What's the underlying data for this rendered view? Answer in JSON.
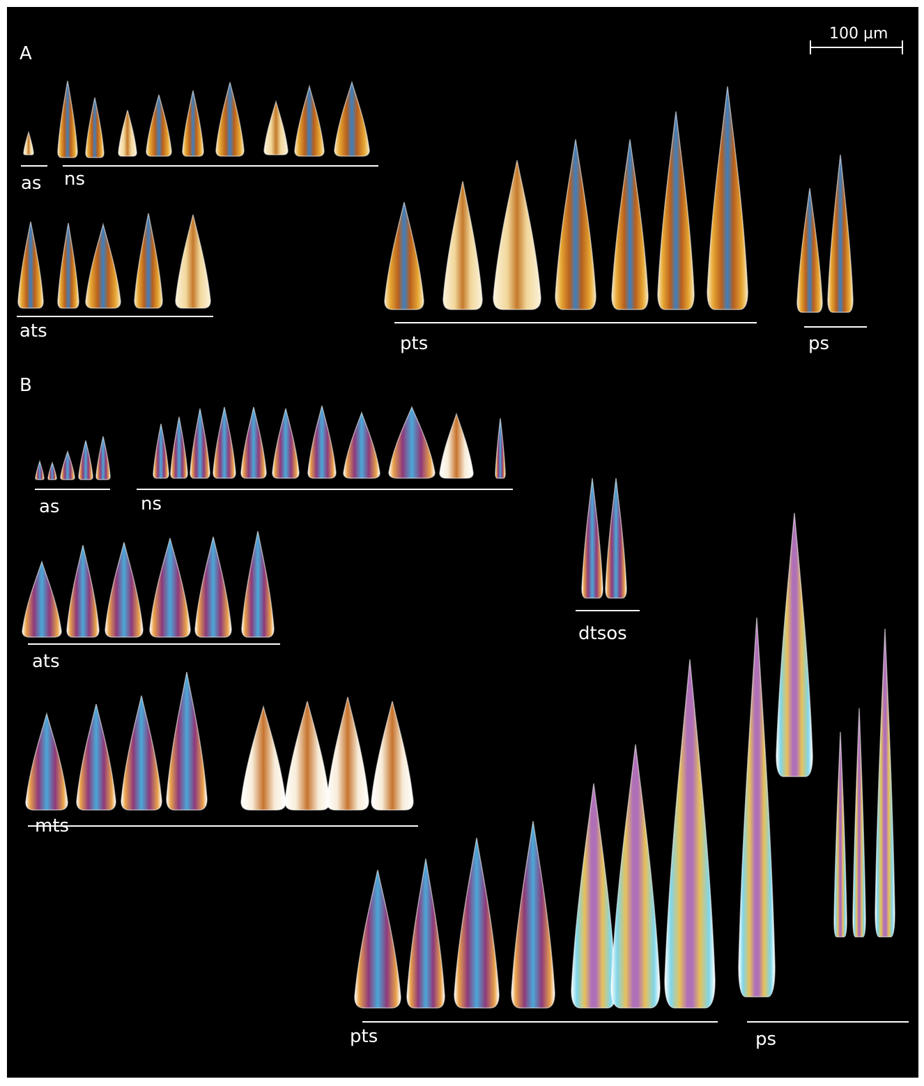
{
  "figure": {
    "panel_a": "A",
    "panel_b": "B",
    "scale_bar": "100 µm",
    "groups_a": [
      "as",
      "ns",
      "ats",
      "pts",
      "ps"
    ],
    "groups_b": [
      "as",
      "ns",
      "ats",
      "dtsos",
      "mts",
      "pts",
      "ps"
    ]
  },
  "colors": {
    "background": "#000000",
    "label": "#ffffff",
    "gold": "#e0a23a",
    "cream": "#f4e6c4",
    "blue": "#3fa0d8",
    "purple": "#7a3a8a",
    "cyan": "#8fd8e8"
  }
}
